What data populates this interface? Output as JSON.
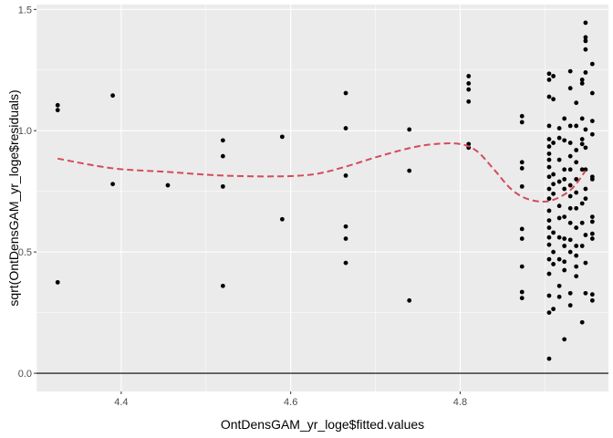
{
  "chart_data": {
    "type": "scatter",
    "xlabel": "OntDensGAM_yr_loge$fitted.values",
    "ylabel": "sqrt(OntDensGAM_yr_loge$residuals)",
    "xlim": [
      4.3,
      4.975
    ],
    "ylim": [
      -0.075,
      1.52
    ],
    "x_ticks": [
      4.4,
      4.6,
      4.8
    ],
    "x_tick_labels": [
      "4.4",
      "4.6",
      "4.8"
    ],
    "y_ticks": [
      0.0,
      0.5,
      1.0,
      1.5
    ],
    "y_tick_labels": [
      "0.0",
      "0.5",
      "1.0",
      "1.5"
    ],
    "grid": true,
    "reference_line": {
      "y": 0,
      "color": "#000000"
    },
    "points": [
      [
        4.325,
        1.105
      ],
      [
        4.325,
        1.085
      ],
      [
        4.325,
        0.375
      ],
      [
        4.39,
        1.145
      ],
      [
        4.39,
        0.78
      ],
      [
        4.455,
        0.775
      ],
      [
        4.52,
        0.96
      ],
      [
        4.52,
        0.895
      ],
      [
        4.52,
        0.77
      ],
      [
        4.52,
        0.36
      ],
      [
        4.59,
        0.975
      ],
      [
        4.59,
        0.635
      ],
      [
        4.665,
        1.155
      ],
      [
        4.665,
        1.01
      ],
      [
        4.665,
        0.815
      ],
      [
        4.665,
        0.605
      ],
      [
        4.665,
        0.555
      ],
      [
        4.665,
        0.455
      ],
      [
        4.74,
        1.005
      ],
      [
        4.74,
        0.835
      ],
      [
        4.74,
        0.3
      ],
      [
        4.81,
        1.225
      ],
      [
        4.81,
        1.195
      ],
      [
        4.81,
        1.17
      ],
      [
        4.81,
        1.12
      ],
      [
        4.81,
        0.945
      ],
      [
        4.81,
        0.93
      ],
      [
        4.873,
        1.06
      ],
      [
        4.873,
        1.035
      ],
      [
        4.873,
        0.87
      ],
      [
        4.873,
        0.845
      ],
      [
        4.873,
        0.77
      ],
      [
        4.873,
        0.595
      ],
      [
        4.873,
        0.555
      ],
      [
        4.873,
        0.44
      ],
      [
        4.873,
        0.335
      ],
      [
        4.873,
        0.31
      ],
      [
        4.905,
        1.235
      ],
      [
        4.905,
        1.21
      ],
      [
        4.905,
        1.14
      ],
      [
        4.905,
        1.02
      ],
      [
        4.905,
        0.965
      ],
      [
        4.905,
        0.935
      ],
      [
        4.905,
        0.905
      ],
      [
        4.905,
        0.88
      ],
      [
        4.905,
        0.85
      ],
      [
        4.905,
        0.81
      ],
      [
        4.905,
        0.76
      ],
      [
        4.905,
        0.72
      ],
      [
        4.905,
        0.67
      ],
      [
        4.905,
        0.63
      ],
      [
        4.905,
        0.6
      ],
      [
        4.905,
        0.56
      ],
      [
        4.905,
        0.53
      ],
      [
        4.905,
        0.47
      ],
      [
        4.905,
        0.41
      ],
      [
        4.905,
        0.32
      ],
      [
        4.905,
        0.25
      ],
      [
        4.905,
        0.06
      ],
      [
        4.91,
        1.225
      ],
      [
        4.91,
        1.13
      ],
      [
        4.91,
        0.95
      ],
      [
        4.91,
        0.82
      ],
      [
        4.91,
        0.78
      ],
      [
        4.91,
        0.74
      ],
      [
        4.91,
        0.58
      ],
      [
        4.91,
        0.5
      ],
      [
        4.91,
        0.45
      ],
      [
        4.91,
        0.265
      ],
      [
        4.917,
        1.01
      ],
      [
        4.917,
        0.97
      ],
      [
        4.917,
        0.88
      ],
      [
        4.917,
        0.79
      ],
      [
        4.917,
        0.69
      ],
      [
        4.917,
        0.64
      ],
      [
        4.917,
        0.56
      ],
      [
        4.917,
        0.47
      ],
      [
        4.917,
        0.36
      ],
      [
        4.917,
        0.315
      ],
      [
        4.923,
        1.05
      ],
      [
        4.923,
        0.96
      ],
      [
        4.923,
        0.84
      ],
      [
        4.923,
        0.8
      ],
      [
        4.923,
        0.76
      ],
      [
        4.923,
        0.645
      ],
      [
        4.923,
        0.555
      ],
      [
        4.923,
        0.525
      ],
      [
        4.923,
        0.46
      ],
      [
        4.923,
        0.425
      ],
      [
        4.923,
        0.14
      ],
      [
        4.93,
        1.245
      ],
      [
        4.93,
        1.175
      ],
      [
        4.93,
        1.02
      ],
      [
        4.93,
        0.95
      ],
      [
        4.93,
        0.895
      ],
      [
        4.93,
        0.84
      ],
      [
        4.93,
        0.775
      ],
      [
        4.93,
        0.73
      ],
      [
        4.93,
        0.68
      ],
      [
        4.93,
        0.62
      ],
      [
        4.93,
        0.55
      ],
      [
        4.93,
        0.5
      ],
      [
        4.93,
        0.33
      ],
      [
        4.93,
        0.28
      ],
      [
        4.937,
        1.115
      ],
      [
        4.937,
        1.02
      ],
      [
        4.937,
        0.92
      ],
      [
        4.937,
        0.87
      ],
      [
        4.937,
        0.8
      ],
      [
        4.937,
        0.745
      ],
      [
        4.937,
        0.68
      ],
      [
        4.937,
        0.6
      ],
      [
        4.937,
        0.525
      ],
      [
        4.937,
        0.485
      ],
      [
        4.937,
        0.44
      ],
      [
        4.937,
        0.4
      ],
      [
        4.944,
        1.21
      ],
      [
        4.944,
        1.195
      ],
      [
        4.944,
        1.05
      ],
      [
        4.944,
        0.965
      ],
      [
        4.944,
        0.945
      ],
      [
        4.944,
        0.84
      ],
      [
        4.944,
        0.7
      ],
      [
        4.944,
        0.62
      ],
      [
        4.944,
        0.525
      ],
      [
        4.944,
        0.21
      ],
      [
        4.948,
        1.445
      ],
      [
        4.948,
        1.385
      ],
      [
        4.948,
        1.37
      ],
      [
        4.948,
        1.335
      ],
      [
        4.948,
        1.24
      ],
      [
        4.948,
        1.005
      ],
      [
        4.948,
        0.93
      ],
      [
        4.948,
        0.84
      ],
      [
        4.948,
        0.76
      ],
      [
        4.948,
        0.72
      ],
      [
        4.948,
        0.57
      ],
      [
        4.948,
        0.455
      ],
      [
        4.948,
        0.33
      ],
      [
        4.956,
        1.275
      ],
      [
        4.956,
        1.155
      ],
      [
        4.956,
        1.04
      ],
      [
        4.956,
        0.985
      ],
      [
        4.956,
        0.81
      ],
      [
        4.956,
        0.8
      ],
      [
        4.956,
        0.645
      ],
      [
        4.956,
        0.625
      ],
      [
        4.956,
        0.575
      ],
      [
        4.956,
        0.555
      ],
      [
        4.956,
        0.325
      ],
      [
        4.956,
        0.3
      ]
    ],
    "smooth_line": {
      "color": "#d44a5c",
      "style": "dashed",
      "points": [
        [
          4.325,
          0.885
        ],
        [
          4.39,
          0.845
        ],
        [
          4.455,
          0.83
        ],
        [
          4.52,
          0.815
        ],
        [
          4.59,
          0.812
        ],
        [
          4.63,
          0.822
        ],
        [
          4.665,
          0.852
        ],
        [
          4.7,
          0.89
        ],
        [
          4.74,
          0.928
        ],
        [
          4.77,
          0.945
        ],
        [
          4.8,
          0.945
        ],
        [
          4.82,
          0.915
        ],
        [
          4.84,
          0.84
        ],
        [
          4.86,
          0.76
        ],
        [
          4.88,
          0.718
        ],
        [
          4.905,
          0.71
        ],
        [
          4.93,
          0.755
        ],
        [
          4.948,
          0.835
        ]
      ]
    }
  }
}
